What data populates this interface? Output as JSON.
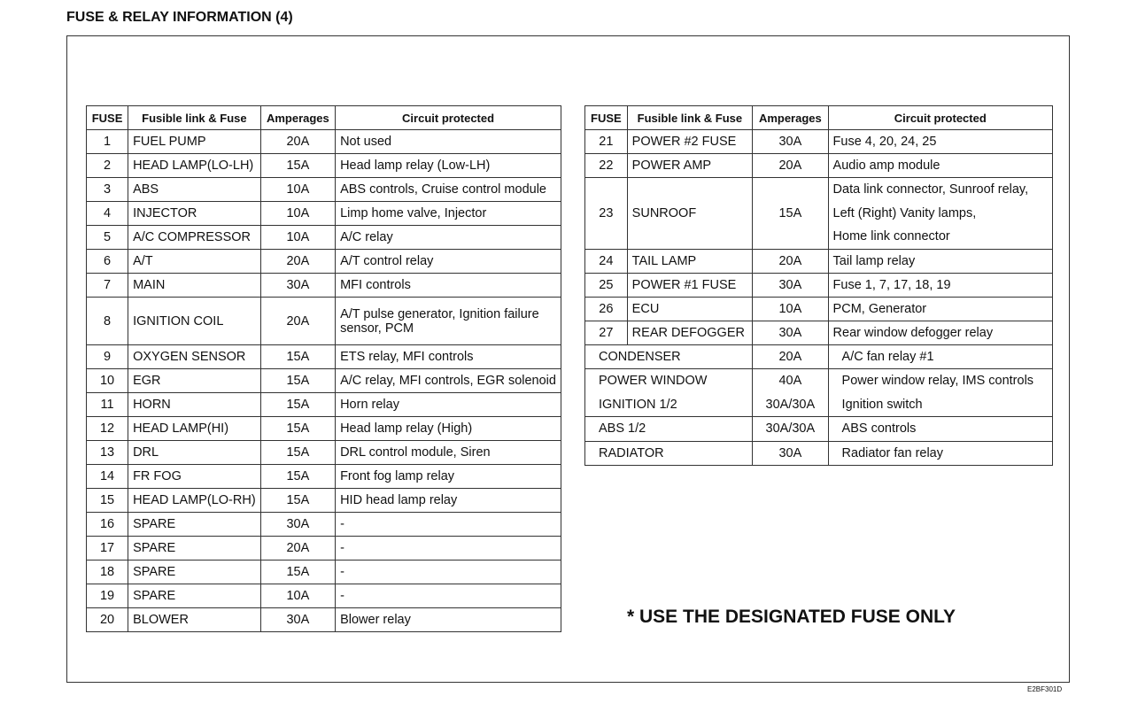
{
  "title": "FUSE & RELAY INFORMATION (4)",
  "headers": [
    "FUSE",
    "Fusible link & Fuse",
    "Amperages",
    "Circuit protected"
  ],
  "left_rows": [
    [
      "1",
      "FUEL PUMP",
      "20A",
      "Not used"
    ],
    [
      "2",
      "HEAD LAMP(LO-LH)",
      "15A",
      "Head lamp relay (Low-LH)"
    ],
    [
      "3",
      "ABS",
      "10A",
      "ABS controls, Cruise control module"
    ],
    [
      "4",
      "INJECTOR",
      "10A",
      "Limp home valve, Injector"
    ],
    [
      "5",
      "A/C COMPRESSOR",
      "10A",
      "A/C relay"
    ],
    [
      "6",
      "A/T",
      "20A",
      "A/T control relay"
    ],
    [
      "7",
      "MAIN",
      "30A",
      "MFI controls"
    ],
    [
      "8",
      "IGNITION COIL",
      "20A",
      "A/T pulse generator, Ignition failure sensor, PCM"
    ],
    [
      "9",
      "OXYGEN SENSOR",
      "15A",
      "ETS relay, MFI controls"
    ],
    [
      "10",
      "EGR",
      "15A",
      "A/C relay, MFI controls, EGR solenoid"
    ],
    [
      "11",
      "HORN",
      "15A",
      "Horn relay"
    ],
    [
      "12",
      "HEAD LAMP(HI)",
      "15A",
      "Head lamp relay (High)"
    ],
    [
      "13",
      "DRL",
      "15A",
      "DRL control module, Siren"
    ],
    [
      "14",
      "FR FOG",
      "15A",
      "Front fog lamp relay"
    ],
    [
      "15",
      "HEAD LAMP(LO-RH)",
      "15A",
      "HID head lamp relay"
    ],
    [
      "16",
      "SPARE",
      "30A",
      "-"
    ],
    [
      "17",
      "SPARE",
      "20A",
      "-"
    ],
    [
      "18",
      "SPARE",
      "15A",
      "-"
    ],
    [
      "19",
      "SPARE",
      "10A",
      "-"
    ],
    [
      "20",
      "BLOWER",
      "30A",
      "Blower relay"
    ]
  ],
  "right_rows": [
    [
      "21",
      "POWER #2 FUSE",
      "30A",
      "Fuse 4, 20, 24, 25"
    ],
    [
      "22",
      "POWER AMP",
      "20A",
      "Audio amp module"
    ],
    [
      "23",
      "SUNROOF",
      "15A",
      "Data link connector, Sunroof relay,|Left (Right) Vanity lamps,|Home link connector"
    ],
    [
      "24",
      "TAIL LAMP",
      "20A",
      "Tail lamp relay"
    ],
    [
      "25",
      "POWER #1 FUSE",
      "30A",
      "Fuse 1, 7, 17, 18, 19"
    ],
    [
      "26",
      "ECU",
      "10A",
      "PCM, Generator"
    ],
    [
      "27",
      "REAR DEFOGGER",
      "30A",
      "Rear window defogger relay"
    ]
  ],
  "right_links": [
    {
      "name": "CONDENSER",
      "amp": "20A",
      "circuit": "A/C fan relay #1"
    },
    {
      "name": "POWER WINDOW",
      "amp": "40A",
      "circuit": "Power window relay, IMS controls",
      "name2": "IGNITION 1/2",
      "amp2": "30A/30A",
      "circuit2": "Ignition switch"
    },
    {
      "name": "ABS 1/2",
      "amp": "30A/30A",
      "circuit": "ABS controls"
    },
    {
      "name": "RADIATOR",
      "amp": "30A",
      "circuit": "Radiator fan relay"
    }
  ],
  "note": "* USE THE DESIGNATED FUSE ONLY",
  "code": "E2BF301D"
}
